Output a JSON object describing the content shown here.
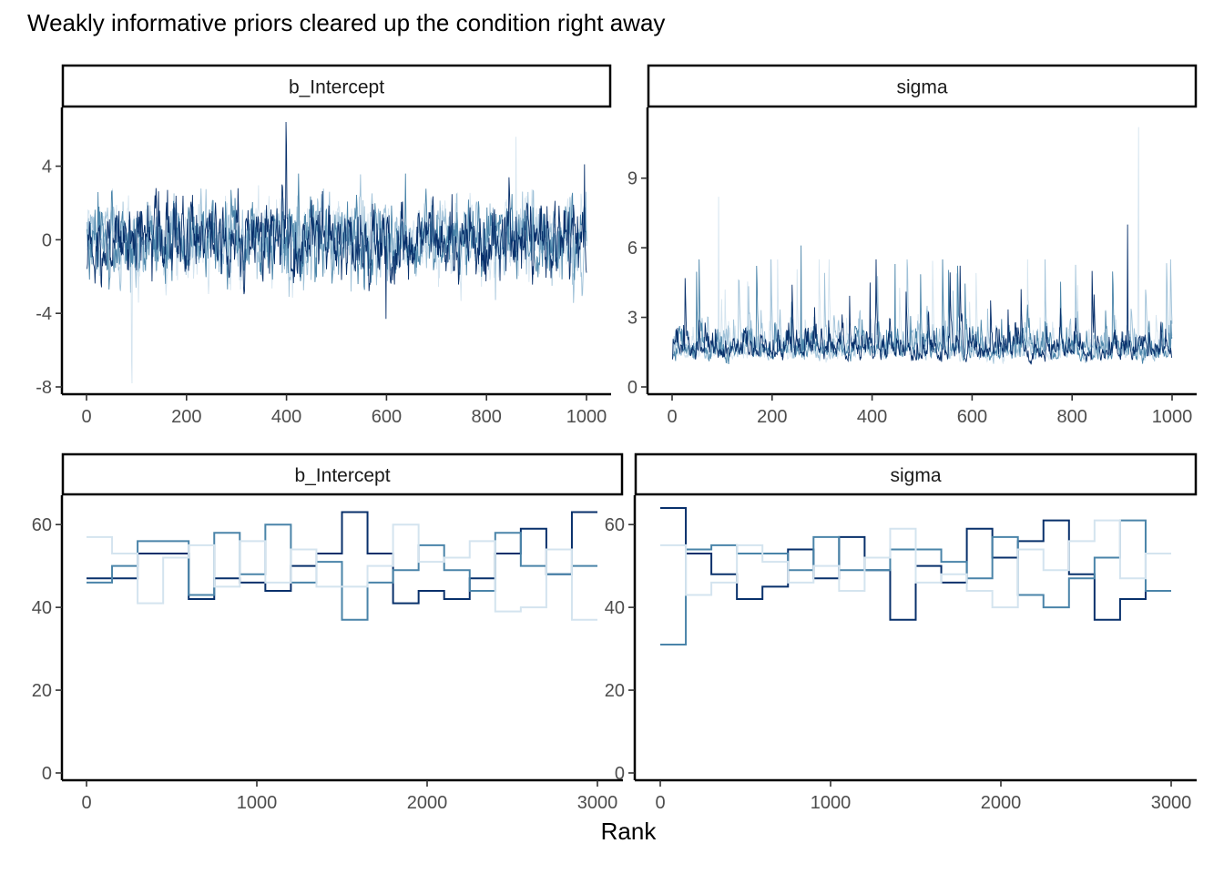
{
  "title": "Weakly informative priors cleared up the condition right away",
  "xlabel": "Rank",
  "chart_data": [
    {
      "type": "line",
      "panel": "trace",
      "strip": "b_Intercept",
      "x_range": [
        0,
        1000
      ],
      "ylim": [
        -8,
        6.5
      ],
      "xticks": [
        0,
        200,
        400,
        600,
        800,
        1000
      ],
      "yticks": [
        -8,
        -4,
        0,
        4
      ],
      "grid": false,
      "series_colors": [
        "#08306b",
        "#4a84a9",
        "#9fc1d8",
        "#d4e4ef"
      ],
      "summary": {
        "typical_range": [
          -3,
          3
        ],
        "min": -7.8,
        "max": 6.4
      }
    },
    {
      "type": "line",
      "panel": "trace",
      "strip": "sigma",
      "x_range": [
        0,
        1000
      ],
      "ylim": [
        0,
        11.5
      ],
      "xticks": [
        0,
        200,
        400,
        600,
        800,
        1000
      ],
      "yticks": [
        0,
        3,
        6,
        9
      ],
      "grid": false,
      "series_colors": [
        "#08306b",
        "#4a84a9",
        "#9fc1d8",
        "#d4e4ef"
      ],
      "summary": {
        "typical_range": [
          0.5,
          3.5
        ],
        "min": 0.4,
        "max": 11.2
      }
    },
    {
      "type": "line",
      "panel": "rank",
      "step": true,
      "strip": "b_Intercept",
      "xlim": [
        0,
        3000
      ],
      "ylim": [
        0,
        64
      ],
      "xticks": [
        0,
        1000,
        2000,
        3000
      ],
      "yticks": [
        0,
        20,
        40,
        60
      ],
      "bin_edges": [
        0,
        150,
        300,
        450,
        600,
        750,
        900,
        1050,
        1200,
        1350,
        1500,
        1650,
        1800,
        1950,
        2100,
        2250,
        2400,
        2550,
        2700,
        2850,
        3000
      ],
      "series": [
        {
          "color": "#08306b",
          "values": [
            47,
            47,
            53,
            53,
            42,
            47,
            46,
            44,
            50,
            53,
            63,
            53,
            41,
            44,
            42,
            47,
            53,
            59,
            48,
            63
          ]
        },
        {
          "color": "#4a84a9",
          "values": [
            46,
            50,
            56,
            56,
            43,
            58,
            48,
            60,
            46,
            51,
            37,
            46,
            49,
            55,
            49,
            44,
            58,
            50,
            48,
            50
          ]
        },
        {
          "color": "#d4e4ef",
          "values": [
            57,
            53,
            41,
            52,
            55,
            45,
            56,
            46,
            54,
            45,
            45,
            50,
            60,
            51,
            52,
            56,
            39,
            40,
            54,
            37
          ]
        }
      ]
    },
    {
      "type": "line",
      "panel": "rank",
      "step": true,
      "strip": "sigma",
      "xlim": [
        0,
        3000
      ],
      "ylim": [
        0,
        64
      ],
      "xticks": [
        0,
        1000,
        2000,
        3000
      ],
      "yticks": [
        0,
        20,
        40,
        60
      ],
      "bin_edges": [
        0,
        150,
        300,
        450,
        600,
        750,
        900,
        1050,
        1200,
        1350,
        1500,
        1650,
        1800,
        1950,
        2100,
        2250,
        2400,
        2550,
        2700,
        2850,
        3000
      ],
      "series": [
        {
          "color": "#08306b",
          "values": [
            64,
            53,
            48,
            42,
            45,
            54,
            47,
            57,
            49,
            37,
            50,
            46,
            59,
            52,
            56,
            61,
            48,
            37,
            42,
            44
          ]
        },
        {
          "color": "#4a84a9",
          "values": [
            31,
            54,
            55,
            53,
            53,
            49,
            57,
            49,
            49,
            54,
            54,
            51,
            47,
            57,
            43,
            40,
            47,
            52,
            61,
            44
          ]
        },
        {
          "color": "#d4e4ef",
          "values": [
            55,
            43,
            46,
            55,
            51,
            46,
            50,
            44,
            52,
            59,
            46,
            48,
            44,
            40,
            54,
            49,
            56,
            61,
            47,
            53
          ]
        }
      ]
    }
  ]
}
